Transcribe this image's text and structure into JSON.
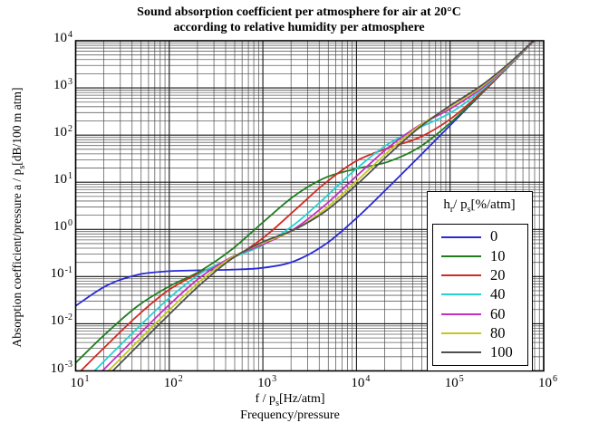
{
  "title": {
    "line1": "Sound absorption coefficient per atmosphere for air at 20°C",
    "line2": "according to relative humidity per atmosphere"
  },
  "axes": {
    "x": {
      "tick_base": "10",
      "tick_exponents": [
        1,
        2,
        3,
        4,
        5,
        6
      ],
      "label_pre": "f / p",
      "label_sub": "s",
      "label_post": "[Hz/atm]",
      "label_line2": "Frequency/pressure"
    },
    "y": {
      "tick_base": "10",
      "tick_exponents": [
        4,
        3,
        2,
        1,
        0,
        -1,
        -2,
        -3
      ],
      "label_pre": "Absorption coefficient/pressure a / p",
      "label_sub": "s",
      "label_post": "[dB/100 m atm]"
    }
  },
  "legend": {
    "title_pre": "h",
    "title_sub1": "r",
    "title_mid": "/ p",
    "title_sub2": "s",
    "title_post": "[%/atm]"
  },
  "grid": {
    "major_color": "#161616",
    "minor_color": "#474747",
    "border_color": "#000000"
  },
  "chart_data": {
    "type": "line",
    "title": "Sound absorption coefficient per atmosphere for air at 20°C according to relative humidity per atmosphere",
    "xlabel": "f / ps [Hz/atm] (Frequency/pressure)",
    "ylabel": "Absorption coefficient/pressure a / ps [dB/100 m atm]",
    "x_scale": "log",
    "y_scale": "log",
    "xlim": [
      10,
      1000000
    ],
    "ylim": [
      0.001,
      10000
    ],
    "grid": "on, major and minor log gridlines",
    "legend_position": "inside lower right",
    "legend_title": "hr / ps [%/atm]",
    "x": [
      10,
      21.54,
      46.42,
      100,
      215.4,
      464.2,
      1000,
      2154,
      4642,
      10000,
      21544,
      46416,
      100000,
      215443,
      464159,
      1000000
    ],
    "series": [
      {
        "name": "0",
        "color": "#2929d6",
        "values": [
          0.0239,
          0.0648,
          0.11,
          0.13,
          0.136,
          0.14,
          0.153,
          0.211,
          0.481,
          1.74,
          7.56,
          34.5,
          160,
          742,
          3444,
          15982
        ]
      },
      {
        "name": "10",
        "color": "#1f7d1f",
        "values": [
          0.00148,
          0.0065,
          0.0241,
          0.0622,
          0.132,
          0.375,
          1.41,
          5.09,
          12.5,
          19.3,
          27.0,
          54.5,
          180,
          762,
          3464,
          16004
        ]
      },
      {
        "name": "20",
        "color": "#cf2b24",
        "values": [
          0.000775,
          0.00353,
          0.0152,
          0.0529,
          0.122,
          0.24,
          0.654,
          2.47,
          9.62,
          28.4,
          52.9,
          88.0,
          216,
          798,
          3501,
          16042
        ]
      },
      {
        "name": "40",
        "color": "#25d0d0",
        "values": [
          0.000397,
          0.00183,
          0.00832,
          0.0351,
          0.116,
          0.248,
          0.465,
          1.26,
          4.78,
          19.4,
          63.8,
          142,
          293,
          883,
          3587,
          16125
        ]
      },
      {
        "name": "60",
        "color": "#c42fc4",
        "values": [
          0.000267,
          0.00124,
          0.00568,
          0.0252,
          0.0971,
          0.259,
          0.48,
          1.02,
          3.31,
          13.5,
          53.1,
          159,
          358,
          969,
          3678,
          16220
        ]
      },
      {
        "name": "80",
        "color": "#c6c621",
        "values": [
          0.000201,
          0.000932,
          0.0043,
          0.0195,
          0.0806,
          0.253,
          0.515,
          0.97,
          2.7,
          10.5,
          43.5,
          154,
          400,
          1049,
          3770,
          16316
        ]
      },
      {
        "name": "100",
        "color": "#4f4f4f",
        "values": [
          0.000162,
          0.000749,
          0.00346,
          0.0158,
          0.068,
          0.238,
          0.542,
          0.983,
          2.41,
          8.79,
          36.8,
          142,
          421,
          1119,
          3861,
          16412
        ]
      }
    ]
  }
}
